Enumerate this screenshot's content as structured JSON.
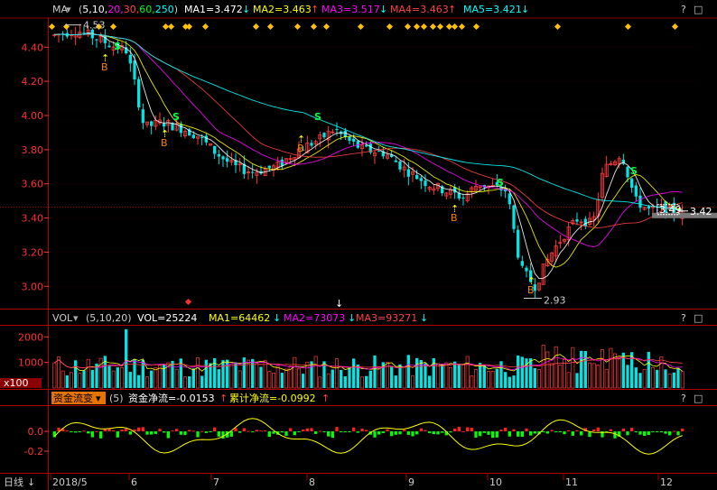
{
  "price_panel": {
    "indicator_label": "MA",
    "params": "(5,10,20,30,60,250)",
    "params_parts": [
      "(",
      "5,10,",
      "20,",
      "30,",
      "60,",
      "250",
      ")"
    ],
    "ma": [
      {
        "label": "MA1=3.472",
        "arrow": "↓",
        "color": "#ffffff"
      },
      {
        "label": "MA2=3.463",
        "arrow": "↑",
        "color": "#ffff00"
      },
      {
        "label": "MA3=3.517",
        "arrow": "↓",
        "color": "#ff00ff"
      },
      {
        "label": "MA4=3.463",
        "arrow": "↑",
        "color": "#ff4040"
      },
      {
        "label": "MA5=3.421",
        "arrow": "↓",
        "color": "#00ffff"
      }
    ],
    "y_ticks": [
      "4.40",
      "4.20",
      "4.00",
      "3.80",
      "3.60",
      "3.40",
      "3.20",
      "3.00"
    ],
    "high_label": "4.53",
    "low_label": "2.93",
    "last_price_label": "3.42",
    "last_box_label": "3.49",
    "buy_label": "B",
    "sell_label": "S",
    "buttons": [
      "?",
      "□"
    ]
  },
  "volume_panel": {
    "title": "VOL",
    "params": "(5,10,20)",
    "value": "VOL=25224",
    "ma": [
      {
        "label": "MA1=64462",
        "arrow": "↓",
        "color": "#ffff00"
      },
      {
        "label": "MA2=73073",
        "arrow": "↓",
        "color": "#ff00ff"
      },
      {
        "label": "MA3=93271",
        "arrow": "↓",
        "color": "#ff4040"
      }
    ],
    "y_ticks": [
      "2000",
      "1000"
    ],
    "unit_label": "x100",
    "buttons": [
      "?",
      "□"
    ]
  },
  "fund_panel": {
    "title": "资金流变",
    "params": "(5)",
    "net_flow": "资金净流=-0.0153",
    "net_arrow": "↑",
    "cum_flow": "累计净流=-0.0992",
    "cum_arrow": "↑",
    "y_ticks": [
      "0.0",
      "-0.2"
    ],
    "buttons": [
      "?",
      "□"
    ]
  },
  "bottom_axis": {
    "period_label": "日线",
    "months": [
      "2018/5",
      "6",
      "7",
      "8",
      "9",
      "10",
      "11",
      "12"
    ]
  },
  "chart_data": {
    "type": "candlestick",
    "y_range": [
      2.88,
      4.56
    ],
    "key_prices": {
      "high": 4.53,
      "low": 2.93,
      "last": 3.42
    },
    "moving_averages": [
      {
        "name": "MA1",
        "value": 3.472
      },
      {
        "name": "MA2",
        "value": 3.463
      },
      {
        "name": "MA3",
        "value": 3.517
      },
      {
        "name": "MA4",
        "value": 3.463
      },
      {
        "name": "MA5",
        "value": 3.421
      }
    ],
    "volume": {
      "value": 25224,
      "ma": [
        64462,
        73073,
        93271
      ],
      "unit": "x100"
    },
    "fund_flow": {
      "net": -0.0153,
      "cumulative": -0.0992
    }
  }
}
